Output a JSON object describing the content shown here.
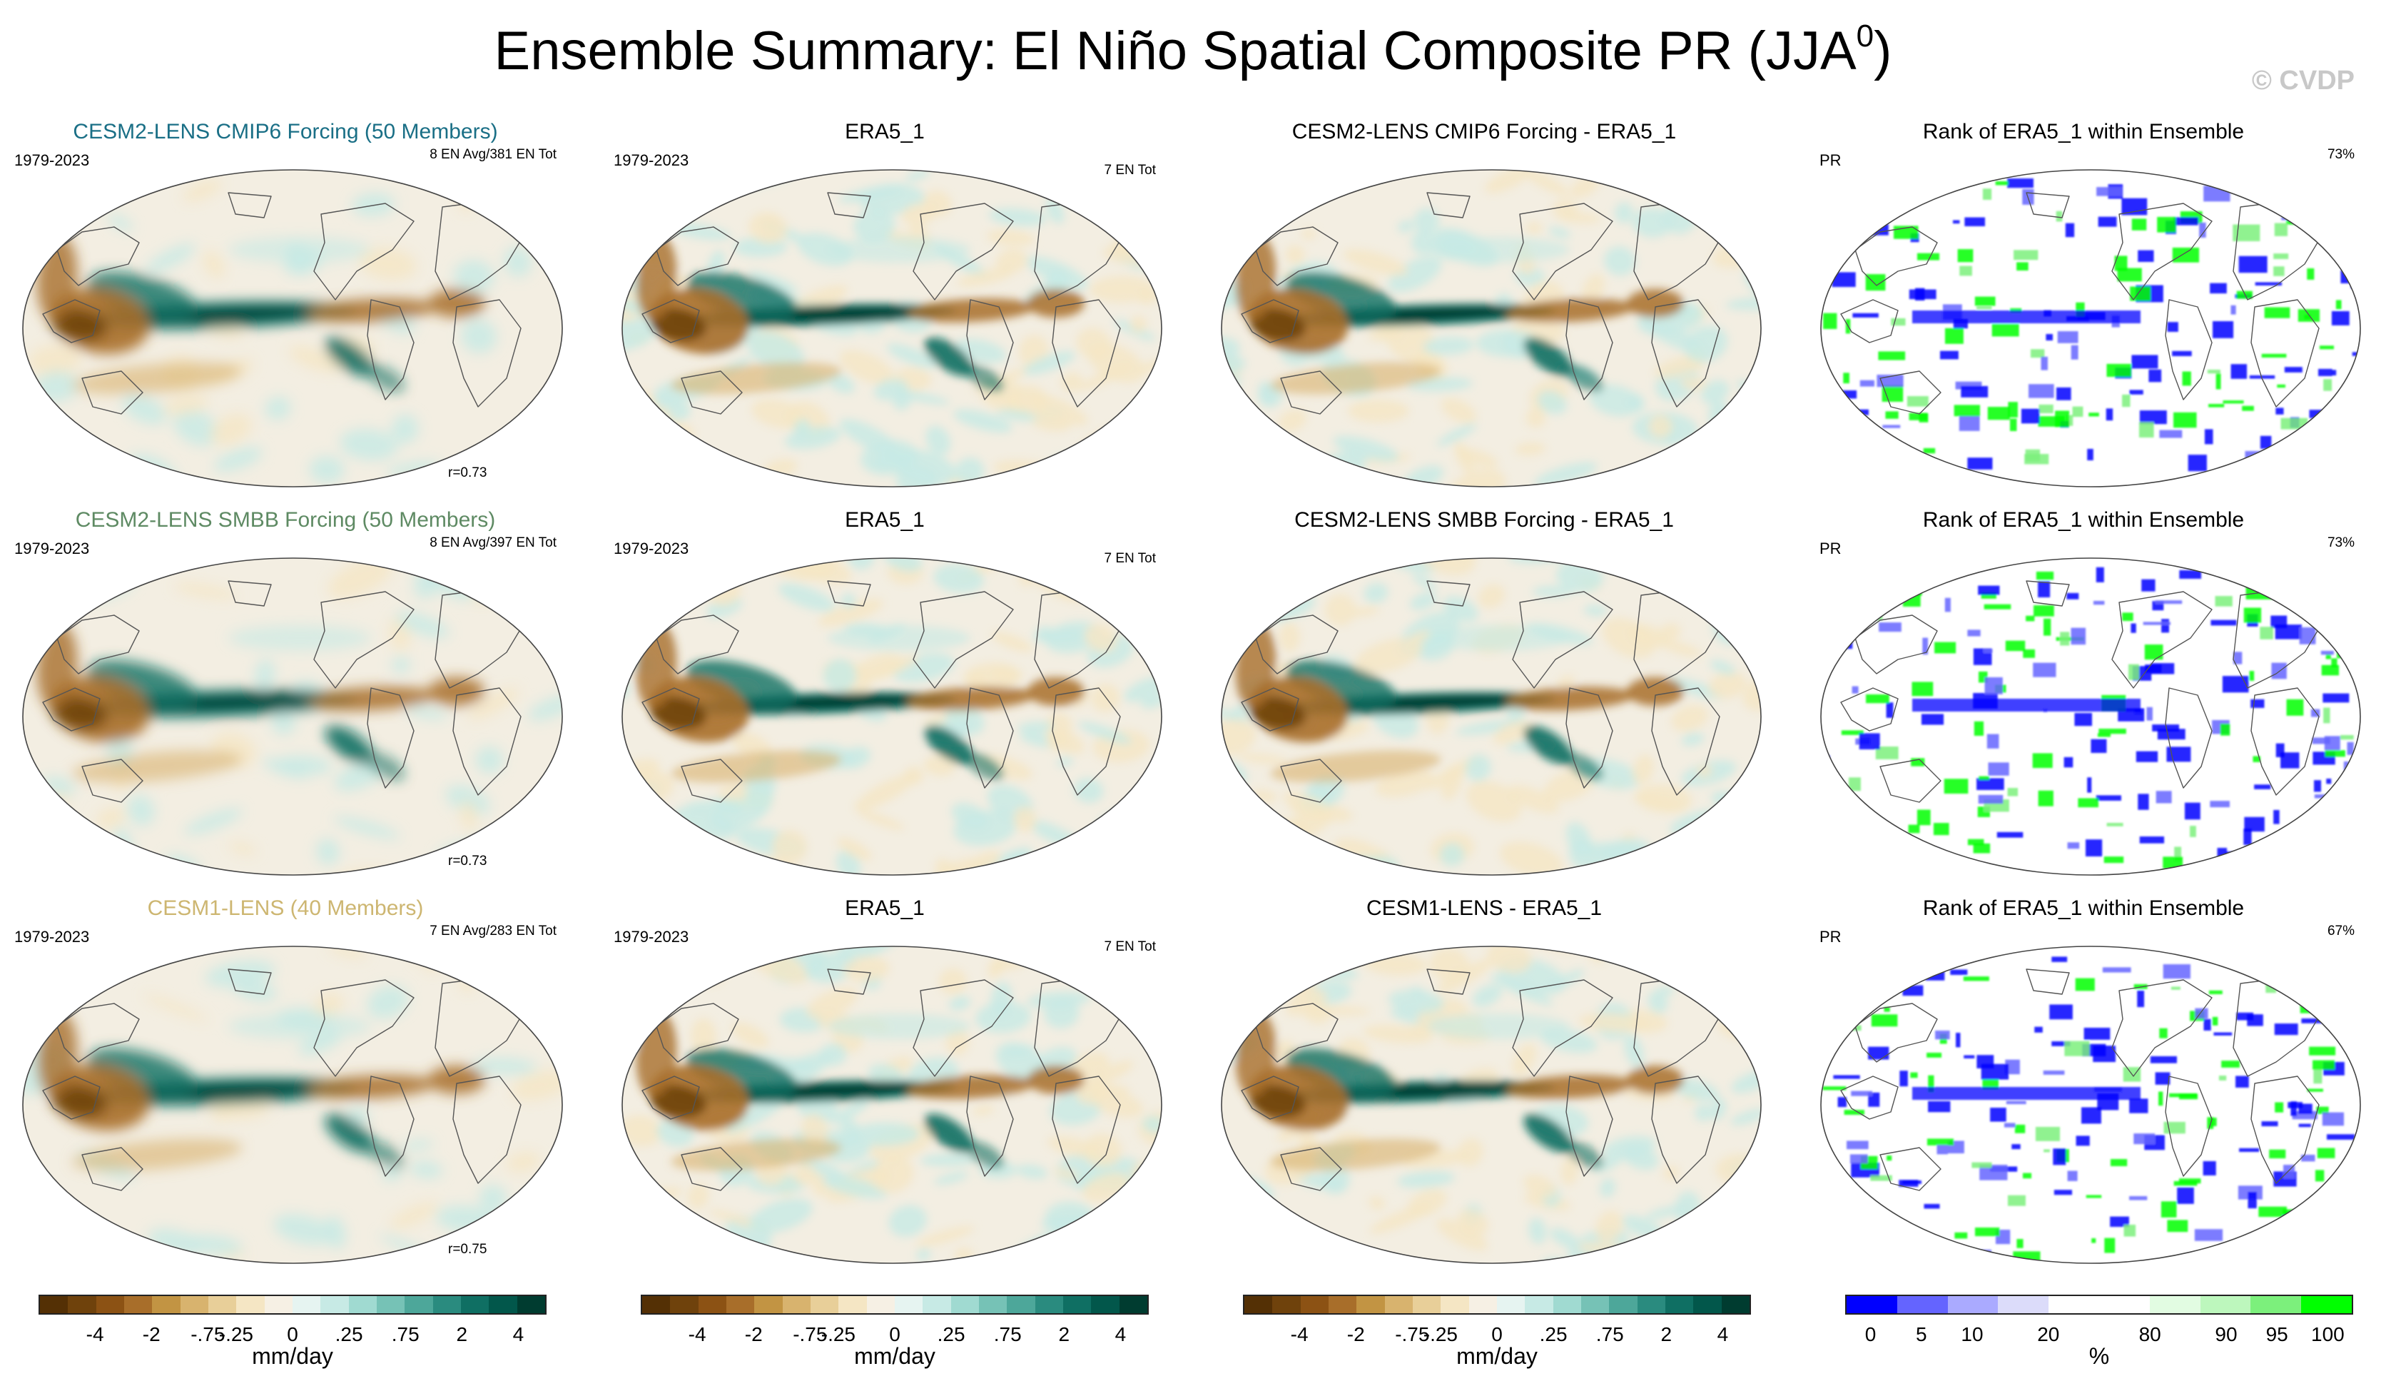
{
  "figure": {
    "title_main": "Ensemble Summary: El Niño Spatial Composite PR (JJA",
    "title_sup": "0",
    "title_close": ")",
    "watermark": "© CVDP"
  },
  "chart_data": {
    "type": "heatmap",
    "variable": "PR",
    "season": "JJA",
    "period": "1979-2023",
    "rows": [
      {
        "ensemble": {
          "title": "CESM2-LENS CMIP6 Forcing (50 Members)",
          "title_color": "#1a6f86",
          "years": "1979-2023",
          "subtitle": "8 EN Avg/381 EN Tot",
          "corr": "r=0.73"
        },
        "obs": {
          "title": "ERA5_1",
          "years": "1979-2023",
          "subtitle": "7 EN Tot"
        },
        "diff": {
          "title": "CESM2-LENS CMIP6 Forcing - ERA5_1"
        },
        "rank": {
          "title": "Rank of ERA5_1 within Ensemble",
          "label": "PR",
          "pct": "73%"
        }
      },
      {
        "ensemble": {
          "title": "CESM2-LENS SMBB Forcing (50 Members)",
          "title_color": "#5e8a63",
          "years": "1979-2023",
          "subtitle": "8 EN Avg/397 EN Tot",
          "corr": "r=0.73"
        },
        "obs": {
          "title": "ERA5_1",
          "years": "1979-2023",
          "subtitle": "7 EN Tot"
        },
        "diff": {
          "title": "CESM2-LENS SMBB Forcing - ERA5_1"
        },
        "rank": {
          "title": "Rank of ERA5_1 within Ensemble",
          "label": "PR",
          "pct": "73%"
        }
      },
      {
        "ensemble": {
          "title": "CESM1-LENS (40 Members)",
          "title_color": "#cdb671",
          "years": "1979-2023",
          "subtitle": "7 EN Avg/283 EN Tot",
          "corr": "r=0.75"
        },
        "obs": {
          "title": "ERA5_1",
          "years": "1979-2023",
          "subtitle": "7 EN Tot"
        },
        "diff": {
          "title": "CESM1-LENS - ERA5_1"
        },
        "rank": {
          "title": "Rank of ERA5_1 within Ensemble",
          "label": "PR",
          "pct": "67%"
        }
      }
    ],
    "colorbar_pr": {
      "unit": "mm/day",
      "ticks": [
        "-4",
        "-2",
        "-.75",
        "-.25",
        "0",
        ".25",
        ".75",
        "2",
        "4"
      ],
      "colors": [
        "#543005",
        "#6f420c",
        "#8c5214",
        "#a86e2a",
        "#c29443",
        "#d8b36e",
        "#e8cf99",
        "#f5e6c4",
        "#f6f0e4",
        "#e6f4f1",
        "#c7eae5",
        "#a0dad1",
        "#76c2b6",
        "#4da79a",
        "#2a8b7f",
        "#0f6f63",
        "#02574b",
        "#003c30"
      ]
    },
    "colorbar_rank": {
      "unit": "%",
      "ticks": [
        "0",
        "5",
        "10",
        "20",
        "80",
        "90",
        "95",
        "100"
      ],
      "colors": [
        "#0000ff",
        "#6464ff",
        "#aaaaff",
        "#dcdcfa",
        "#ffffff",
        "#ffffff",
        "#e2fce2",
        "#bdf7bd",
        "#7cf07c",
        "#00ff00"
      ]
    }
  }
}
